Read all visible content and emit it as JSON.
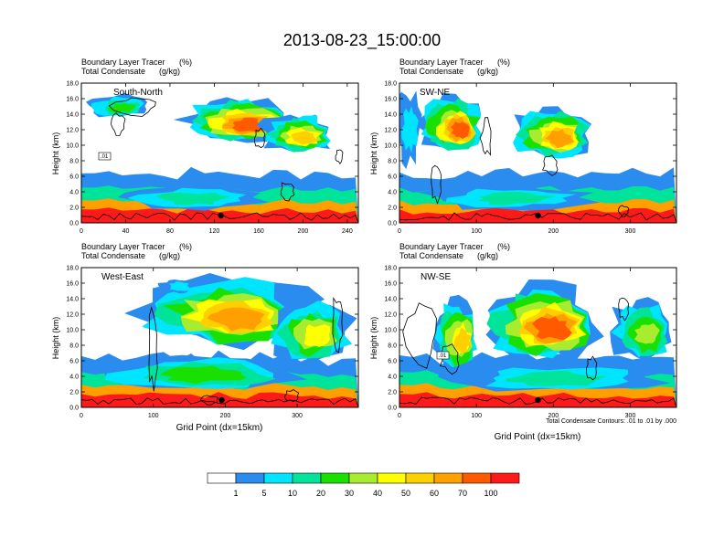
{
  "figure": {
    "title": "2013-08-23_15:00:00",
    "subtitle_left_1": "Boundary Layer Tracer",
    "subtitle_unit_1": "(%)",
    "subtitle_left_2": "Total Condensate",
    "subtitle_unit_2": "(g/kg)",
    "footnote": "Total Condensate Contours: .01 to .01 by .000",
    "colors": {
      "levels": [
        "#ffffff",
        "#2b8cf0",
        "#00e5ff",
        "#00e39a",
        "#19e000",
        "#a8ec30",
        "#ffff00",
        "#ffd000",
        "#ffa000",
        "#ff5a00",
        "#ff1a1a"
      ],
      "terrain": "#000000",
      "contour": "#000000"
    }
  },
  "chart_data": [
    {
      "type": "heatmap",
      "panel_label": "South-North",
      "ylabel": "Height (km)",
      "xlabel": "",
      "xlim": [
        0,
        250
      ],
      "ylim": [
        0,
        18
      ],
      "x_ticks": [
        "0",
        "40",
        "80",
        "120",
        "160",
        "200",
        "240"
      ],
      "x_tick_values": [
        0,
        40,
        80,
        120,
        160,
        200,
        240
      ],
      "y_ticks": [
        "0.0",
        "2.0",
        "4.0",
        "6.0",
        "8.0",
        "10.0",
        "12.0",
        "14.0",
        "16.0",
        "18.0"
      ],
      "marker_x": 126,
      "contour_label": ".01"
    },
    {
      "type": "heatmap",
      "panel_label": "SW-NE",
      "ylabel": "Height (km)",
      "xlabel": "",
      "xlim": [
        0,
        360
      ],
      "ylim": [
        0,
        18
      ],
      "x_ticks": [
        "0",
        "100",
        "200",
        "300"
      ],
      "x_tick_values": [
        0,
        100,
        200,
        300
      ],
      "y_ticks": [
        "0.0",
        "2.0",
        "4.0",
        "6.0",
        "8.0",
        "10.0",
        "12.0",
        "14.0",
        "16.0",
        "18.0"
      ],
      "marker_x": 180,
      "contour_label": ""
    },
    {
      "type": "heatmap",
      "panel_label": "West-East",
      "ylabel": "Height (km)",
      "xlabel": "Grid Point (dx=15km)",
      "xlim": [
        0,
        385
      ],
      "ylim": [
        0,
        18
      ],
      "x_ticks": [
        "0",
        "100",
        "200",
        "300"
      ],
      "x_tick_values": [
        0,
        100,
        200,
        300
      ],
      "y_ticks": [
        "0.0",
        "2.0",
        "4.0",
        "6.0",
        "8.0",
        "10.0",
        "12.0",
        "14.0",
        "16.0",
        "18.0"
      ],
      "marker_x": 195,
      "contour_label": ""
    },
    {
      "type": "heatmap",
      "panel_label": "NW-SE",
      "ylabel": "Height (km)",
      "xlabel": "Grid Point (dx=15km)",
      "xlim": [
        0,
        360
      ],
      "ylim": [
        0,
        18
      ],
      "x_ticks": [
        "0",
        "100",
        "200",
        "300"
      ],
      "x_tick_values": [
        0,
        100,
        200,
        300
      ],
      "y_ticks": [
        "0.0",
        "2.0",
        "4.0",
        "6.0",
        "8.0",
        "10.0",
        "12.0",
        "14.0",
        "16.0",
        "18.0"
      ],
      "marker_x": 180,
      "contour_label": ".01"
    }
  ],
  "colorbar": {
    "labels": [
      "1",
      "5",
      "10",
      "20",
      "30",
      "40",
      "50",
      "60",
      "70",
      "100"
    ]
  }
}
